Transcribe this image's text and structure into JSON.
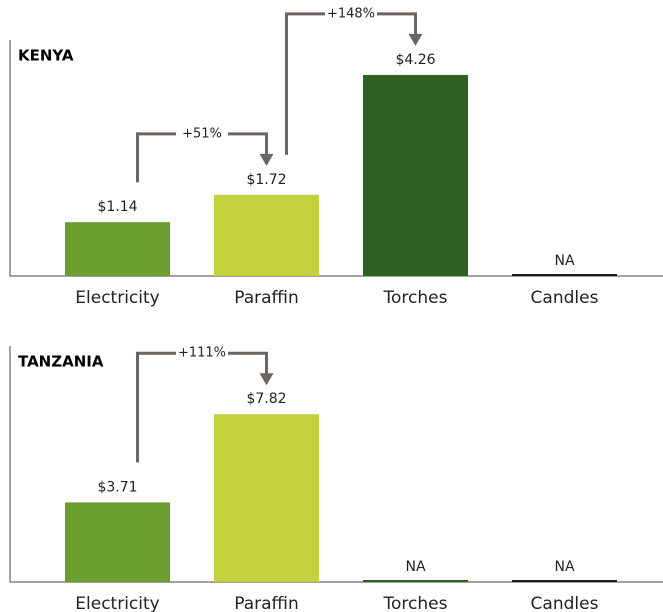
{
  "chart_data": [
    {
      "type": "bar",
      "title": "KENYA",
      "categories": [
        "Electricity",
        "Paraffin",
        "Torches",
        "Candles"
      ],
      "values": [
        1.14,
        1.72,
        4.26,
        null
      ],
      "value_labels": [
        "$1.14",
        "$1.72",
        "$4.26",
        "NA"
      ],
      "colors": [
        "#6b9e2f",
        "#c2d13f",
        "#2e5f23",
        "#1a1a1a"
      ],
      "ylim": [
        0,
        5
      ],
      "annotations": [
        {
          "text": "+51%",
          "from": 0,
          "to": 1
        },
        {
          "text": "+148%",
          "from": 1,
          "to": 2
        }
      ]
    },
    {
      "type": "bar",
      "title": "TANZANIA",
      "categories": [
        "Electricity",
        "Paraffin",
        "Torches",
        "Candles"
      ],
      "values": [
        3.71,
        7.82,
        null,
        null
      ],
      "value_labels": [
        "$3.71",
        "$7.82",
        "NA",
        "NA"
      ],
      "colors": [
        "#6b9e2f",
        "#c2d13f",
        "#2e5f23",
        "#1a1a1a"
      ],
      "ylim": [
        0,
        11
      ],
      "annotations": [
        {
          "text": "+111%",
          "from": 0,
          "to": 1
        }
      ]
    }
  ]
}
